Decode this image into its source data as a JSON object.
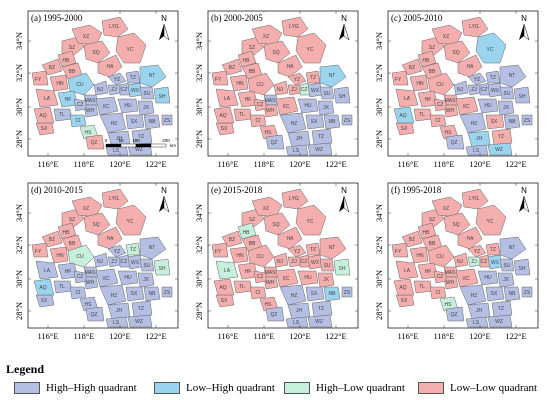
{
  "quadrants": {
    "HH": {
      "label": "High–High quadrant",
      "color": "#b4bfe3"
    },
    "LH": {
      "label": "Low–High quadrant",
      "color": "#9ad4ee"
    },
    "HL": {
      "label": "High–Low quadrant",
      "color": "#c6efdc"
    },
    "LL": {
      "label": "Low–Low quadrant",
      "color": "#f4aeae"
    }
  },
  "legend": {
    "title": "Legend",
    "order": [
      "HH",
      "LH",
      "HL",
      "LL"
    ]
  },
  "axes": {
    "x_ticks": [
      "116°E",
      "118°E",
      "120°E",
      "122°E"
    ],
    "y_ticks": [
      "34°N",
      "32°N",
      "30°N",
      "28°N"
    ]
  },
  "north_label": "N",
  "scalebar": {
    "ticks": [
      "0",
      "50",
      "100",
      "200"
    ],
    "unit": "km"
  },
  "regions": [
    "YC",
    "SZ",
    "HB",
    "XZ",
    "SQ",
    "LYG",
    "BZ",
    "FY",
    "HN",
    "BB",
    "HA",
    "LA",
    "CU",
    "SX",
    "HF",
    "MAS",
    "WH",
    "AQ",
    "TL",
    "CZ",
    "CI",
    "XC",
    "HS",
    "NJ",
    "YZ",
    "TZ",
    "ZJ",
    "CZ2",
    "WX",
    "NT",
    "SU",
    "SH",
    "HU",
    "JX",
    "HZ",
    "NB",
    "SX2",
    "ZS",
    "QZ",
    "JH",
    "TZ2",
    "LS",
    "WZ"
  ],
  "region_labels": {
    "YC": "YC",
    "SZ": "SZ",
    "HB": "HB",
    "XZ": "XZ",
    "SQ": "SQ",
    "LYG": "LYG",
    "BZ": "BZ",
    "FY": "FY",
    "HN": "HN",
    "BB": "BB",
    "HA": "HA",
    "LA": "LA",
    "CU": "CU",
    "SX": "SX",
    "HF": "HF",
    "MAS": "MAS",
    "WH": "WH",
    "AQ": "AQ",
    "TL": "TL",
    "CZ": "CZ",
    "CI": "CI",
    "XC": "XC",
    "HS": "HS",
    "NJ": "NJ",
    "YZ": "YZ",
    "TZ": "TZ",
    "ZJ": "ZJ",
    "CZ2": "CZ",
    "WX": "WX",
    "NT": "NT",
    "SU": "SU",
    "SH": "SH",
    "HU": "HU",
    "JX": "JX",
    "HZ": "HZ",
    "NB": "NB",
    "SX2": "SX",
    "ZS": "ZS",
    "QZ": "QZ",
    "JH": "JH",
    "TZ2": "TZ",
    "LS": "LS",
    "WZ": "WZ"
  },
  "panels": [
    {
      "title": "(a) 1995-2000",
      "show_scale": true,
      "values": {
        "YC": "LL",
        "SZ": "LL",
        "HB": "LL",
        "XZ": "LL",
        "SQ": "LL",
        "LYG": "LL",
        "BZ": "LL",
        "FY": "LL",
        "HN": "LL",
        "BB": "LL",
        "HA": "LL",
        "LA": "LL",
        "CU": "LH",
        "SX": "LL",
        "HF": "LH",
        "MAS": "HH",
        "WH": "HH",
        "AQ": "LL",
        "TL": "HH",
        "CZ": "HH",
        "CI": "LH",
        "XC": "HH",
        "HS": "HL",
        "NJ": "HH",
        "YZ": "HH",
        "TZ": "HH",
        "ZJ": "HH",
        "CZ2": "HH",
        "WX": "LH",
        "NT": "LH",
        "SU": "HH",
        "SH": "LH",
        "HU": "HH",
        "JX": "HH",
        "HZ": "HH",
        "NB": "HH",
        "SX2": "HH",
        "ZS": "HH",
        "QZ": "LL",
        "JH": "HH",
        "TZ2": "HH",
        "LS": "HH",
        "WZ": "HH"
      }
    },
    {
      "title": "(b) 2000-2005",
      "show_scale": false,
      "values": {
        "YC": "LL",
        "SZ": "LL",
        "HB": "LL",
        "XZ": "LL",
        "SQ": "LL",
        "LYG": "LL",
        "BZ": "LL",
        "FY": "LL",
        "HN": "LL",
        "BB": "LL",
        "HA": "LL",
        "LA": "LL",
        "CU": "LL",
        "SX": "LL",
        "HF": "LL",
        "MAS": "HH",
        "WH": "LL",
        "AQ": "LL",
        "TL": "LL",
        "CZ": "LL",
        "CI": "LL",
        "XC": "LL",
        "HS": "LL",
        "NJ": "LL",
        "YZ": "LL",
        "TZ": "LL",
        "ZJ": "LL",
        "CZ2": "HL",
        "WX": "HH",
        "NT": "LH",
        "SU": "HH",
        "SH": "HH",
        "HU": "HH",
        "JX": "HH",
        "HZ": "HH",
        "NB": "HH",
        "SX2": "HH",
        "ZS": "HH",
        "QZ": "HH",
        "JH": "HH",
        "TZ2": "HH",
        "LS": "HH",
        "WZ": "HH"
      }
    },
    {
      "title": "(c) 2005-2010",
      "show_scale": false,
      "values": {
        "YC": "LH",
        "SZ": "LL",
        "HB": "LL",
        "XZ": "LL",
        "SQ": "LL",
        "LYG": "LL",
        "BZ": "LL",
        "FY": "LL",
        "HN": "LL",
        "BB": "LL",
        "HA": "LL",
        "LA": "LL",
        "CU": "LL",
        "SX": "LL",
        "HF": "LL",
        "MAS": "LL",
        "WH": "LL",
        "AQ": "LH",
        "TL": "LL",
        "CZ": "LL",
        "CI": "LL",
        "XC": "LL",
        "HS": "LL",
        "NJ": "HH",
        "YZ": "HH",
        "TZ": "HH",
        "ZJ": "HH",
        "CZ2": "HH",
        "WX": "HH",
        "NT": "HH",
        "SU": "HH",
        "SH": "HH",
        "HU": "HH",
        "JX": "HH",
        "HZ": "HH",
        "NB": "HH",
        "SX2": "LL",
        "ZS": "HH",
        "QZ": "HH",
        "JH": "LH",
        "TZ2": "LL",
        "LS": "HH",
        "WZ": "LH"
      }
    },
    {
      "title": "(d) 2010-2015",
      "show_scale": false,
      "values": {
        "YC": "LL",
        "SZ": "LL",
        "HB": "LL",
        "XZ": "LL",
        "SQ": "LL",
        "LYG": "LL",
        "BZ": "LL",
        "FY": "LL",
        "HN": "LL",
        "BB": "LL",
        "HA": "LL",
        "LA": "HH",
        "CU": "HL",
        "SX": "HH",
        "HF": "HH",
        "MAS": "HH",
        "WH": "HH",
        "AQ": "LH",
        "TL": "HH",
        "CZ": "HH",
        "CI": "HH",
        "XC": "HH",
        "HS": "HH",
        "NJ": "HH",
        "YZ": "HH",
        "TZ": "HL",
        "ZJ": "HH",
        "CZ2": "HH",
        "WX": "HH",
        "NT": "HH",
        "SU": "HH",
        "SH": "HL",
        "HU": "HH",
        "JX": "HH",
        "HZ": "HH",
        "NB": "HH",
        "SX2": "HH",
        "ZS": "HH",
        "QZ": "HH",
        "JH": "HH",
        "TZ2": "HH",
        "LS": "HH",
        "WZ": "HH"
      }
    },
    {
      "title": "(e) 2015-2018",
      "show_scale": false,
      "values": {
        "YC": "LL",
        "SZ": "LL",
        "HB": "HL",
        "XZ": "LL",
        "SQ": "LL",
        "LYG": "LL",
        "BZ": "LL",
        "FY": "LL",
        "HN": "LL",
        "BB": "LL",
        "HA": "LL",
        "LA": "HL",
        "CU": "LL",
        "SX": "LL",
        "HF": "LL",
        "MAS": "LL",
        "WH": "LL",
        "AQ": "LL",
        "TL": "LL",
        "CZ": "LL",
        "CI": "LL",
        "XC": "LL",
        "HS": "LL",
        "NJ": "LL",
        "YZ": "LL",
        "TZ": "LL",
        "ZJ": "LL",
        "CZ2": "LL",
        "WX": "LL",
        "NT": "LL",
        "SU": "LL",
        "SH": "HL",
        "HU": "LL",
        "JX": "LL",
        "HZ": "HH",
        "NB": "LH",
        "SX2": "HH",
        "ZS": "HH",
        "QZ": "HH",
        "JH": "HH",
        "TZ2": "HH",
        "LS": "HH",
        "WZ": "HH"
      }
    },
    {
      "title": "(f) 1995-2018",
      "show_scale": false,
      "values": {
        "YC": "LL",
        "SZ": "LL",
        "HB": "LL",
        "XZ": "LL",
        "SQ": "LL",
        "LYG": "LL",
        "BZ": "LL",
        "FY": "LL",
        "HN": "LL",
        "BB": "LL",
        "HA": "LL",
        "LA": "LL",
        "CU": "LL",
        "SX": "LL",
        "HF": "LL",
        "MAS": "LL",
        "WH": "LL",
        "AQ": "LL",
        "TL": "LL",
        "CZ": "LL",
        "CI": "LL",
        "XC": "LL",
        "HS": "HL",
        "NJ": "LL",
        "YZ": "LL",
        "TZ": "LL",
        "ZJ": "HL",
        "CZ2": "LL",
        "WX": "LH",
        "NT": "HH",
        "SU": "HH",
        "SH": "HH",
        "HU": "HH",
        "JX": "HH",
        "HZ": "HH",
        "NB": "HH",
        "SX2": "HH",
        "ZS": "HH",
        "QZ": "HH",
        "JH": "HH",
        "TZ2": "HH",
        "LS": "HH",
        "WZ": "HH"
      }
    }
  ]
}
